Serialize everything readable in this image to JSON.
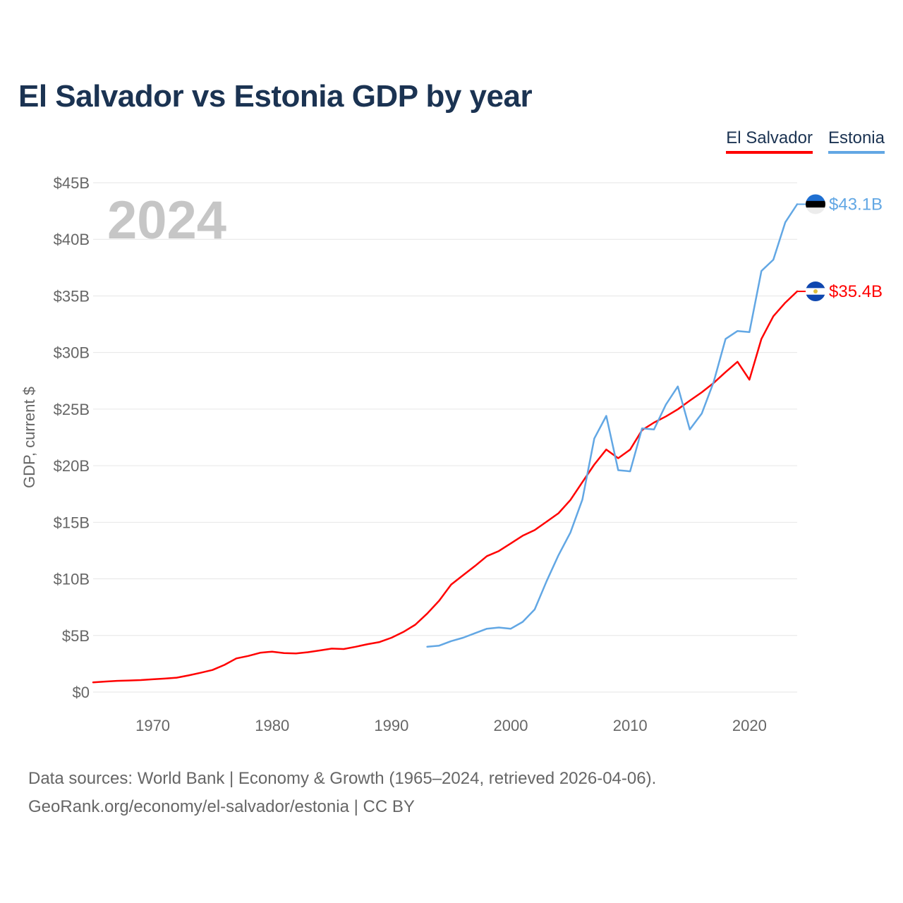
{
  "title": "El Salvador vs Estonia GDP by year",
  "legend": [
    {
      "label": "El Salvador",
      "color": "#ff0000"
    },
    {
      "label": "Estonia",
      "color": "#62a7e4"
    }
  ],
  "year_watermark": "2024",
  "footer": {
    "line1": "Data sources: World Bank | Economy & Growth (1965–2024, retrieved 2026-04-06).",
    "line2": "GeoRank.org/economy/el-salvador/estonia | CC BY"
  },
  "chart_data": {
    "type": "line",
    "title": "El Salvador vs Estonia GDP by year",
    "xlabel": "",
    "ylabel": "GDP, current $",
    "xlim": [
      1965,
      2024
    ],
    "ylim": [
      -1.8,
      45
    ],
    "y_ticks": [
      0,
      5,
      10,
      15,
      20,
      25,
      30,
      35,
      40,
      45
    ],
    "y_tick_labels": [
      "$0",
      "$5B",
      "$10B",
      "$15B",
      "$20B",
      "$25B",
      "$30B",
      "$35B",
      "$40B",
      "$45B"
    ],
    "x_ticks": [
      1970,
      1980,
      1990,
      2000,
      2010,
      2020
    ],
    "x_tick_labels": [
      "1970",
      "1980",
      "1990",
      "2000",
      "2010",
      "2020"
    ],
    "grid": true,
    "legend_position": "top-right",
    "series": [
      {
        "name": "El Salvador",
        "color": "#ff0000",
        "end_label": "$35.4B",
        "x": [
          1965,
          1966,
          1967,
          1968,
          1969,
          1970,
          1971,
          1972,
          1973,
          1974,
          1975,
          1976,
          1977,
          1978,
          1979,
          1980,
          1981,
          1982,
          1983,
          1984,
          1985,
          1986,
          1987,
          1988,
          1989,
          1990,
          1991,
          1992,
          1993,
          1994,
          1995,
          1996,
          1997,
          1998,
          1999,
          2000,
          2001,
          2002,
          2003,
          2004,
          2005,
          2006,
          2007,
          2008,
          2009,
          2010,
          2011,
          2012,
          2013,
          2014,
          2015,
          2016,
          2017,
          2018,
          2019,
          2020,
          2021,
          2022,
          2023,
          2024
        ],
        "values": [
          0.86,
          0.93,
          0.99,
          1.02,
          1.06,
          1.13,
          1.19,
          1.27,
          1.47,
          1.7,
          1.95,
          2.4,
          2.97,
          3.19,
          3.47,
          3.57,
          3.44,
          3.41,
          3.52,
          3.68,
          3.84,
          3.8,
          4.0,
          4.23,
          4.42,
          4.8,
          5.31,
          5.95,
          6.94,
          8.07,
          9.5,
          10.32,
          11.14,
          12.01,
          12.46,
          13.13,
          13.81,
          14.31,
          15.05,
          15.8,
          16.97,
          18.55,
          20.1,
          21.43,
          20.66,
          21.42,
          23.14,
          23.81,
          24.35,
          24.98,
          25.75,
          26.48,
          27.31,
          28.27,
          29.18,
          27.6,
          31.2,
          33.2,
          34.4,
          35.4
        ]
      },
      {
        "name": "Estonia",
        "color": "#62a7e4",
        "end_label": "$43.1B",
        "x": [
          1993,
          1994,
          1995,
          1996,
          1997,
          1998,
          1999,
          2000,
          2001,
          2002,
          2003,
          2004,
          2005,
          2006,
          2007,
          2008,
          2009,
          2010,
          2011,
          2012,
          2013,
          2014,
          2015,
          2016,
          2017,
          2018,
          2019,
          2020,
          2021,
          2022,
          2023,
          2024
        ],
        "values": [
          4.0,
          4.1,
          4.5,
          4.8,
          5.2,
          5.6,
          5.7,
          5.6,
          6.2,
          7.3,
          9.8,
          12.1,
          14.1,
          17.0,
          22.4,
          24.4,
          19.6,
          19.5,
          23.3,
          23.2,
          25.4,
          27.0,
          23.2,
          24.6,
          27.4,
          31.2,
          31.9,
          31.8,
          37.2,
          38.2,
          41.5,
          43.1
        ]
      }
    ]
  }
}
